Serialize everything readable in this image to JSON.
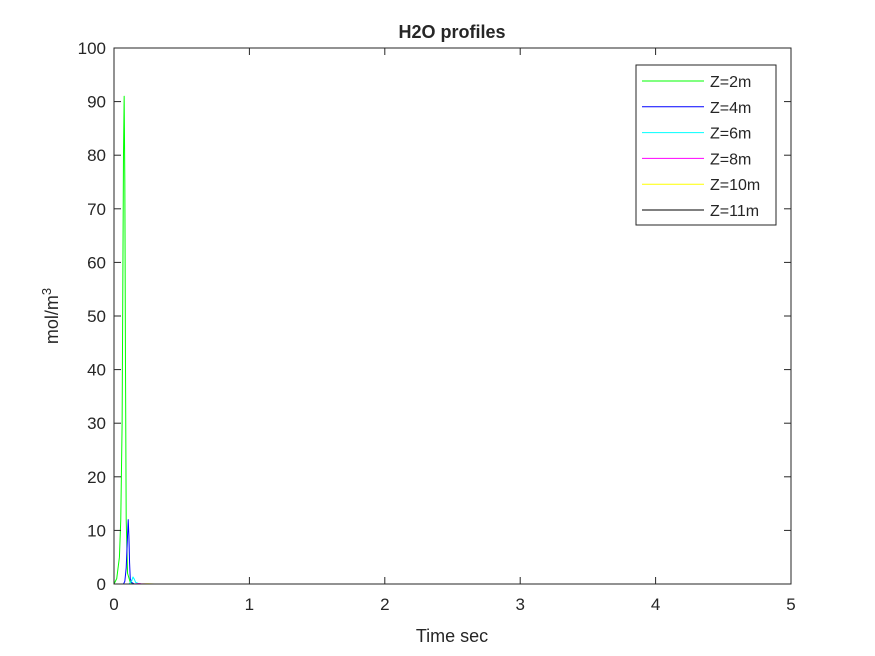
{
  "chart_data": {
    "type": "line",
    "title": "H2O profiles",
    "xlabel": "Time sec",
    "ylabel": "mol/m",
    "ylabel_superscript": "3",
    "xlim": [
      0,
      5
    ],
    "ylim": [
      0,
      100
    ],
    "xticks": [
      0,
      1,
      2,
      3,
      4,
      5
    ],
    "yticks": [
      0,
      10,
      20,
      30,
      40,
      50,
      60,
      70,
      80,
      90,
      100
    ],
    "grid": false,
    "legend_position": "top-right",
    "series": [
      {
        "name": "Z=2m",
        "color": "#00ff00",
        "x": [
          0,
          0.02,
          0.04,
          0.05,
          0.06,
          0.065,
          0.07,
          0.075,
          0.08,
          0.085,
          0.09,
          0.1,
          0.12,
          0.15,
          0.2,
          5
        ],
        "y": [
          0,
          1,
          5,
          12,
          30,
          55,
          80,
          91,
          75,
          40,
          12,
          2,
          0.3,
          0,
          0,
          0
        ]
      },
      {
        "name": "Z=4m",
        "color": "#0000ff",
        "x": [
          0,
          0.07,
          0.08,
          0.09,
          0.1,
          0.105,
          0.11,
          0.115,
          0.12,
          0.13,
          0.15,
          0.2,
          5
        ],
        "y": [
          0,
          0,
          0.5,
          3,
          9,
          12,
          9,
          4,
          1,
          0.3,
          0,
          0,
          0
        ]
      },
      {
        "name": "Z=6m",
        "color": "#00ffff",
        "x": [
          0,
          0.11,
          0.13,
          0.14,
          0.15,
          0.16,
          0.18,
          0.2,
          5
        ],
        "y": [
          0,
          0,
          0.5,
          1.3,
          0.9,
          0.3,
          0.1,
          0,
          0
        ]
      },
      {
        "name": "Z=8m",
        "color": "#ff00ff",
        "x": [
          0,
          0.15,
          0.18,
          0.2,
          0.25,
          5
        ],
        "y": [
          0,
          0,
          0.1,
          0.05,
          0,
          0
        ]
      },
      {
        "name": "Z=10m",
        "color": "#ffff00",
        "x": [
          0,
          0.2,
          0.25,
          0.3,
          5
        ],
        "y": [
          0,
          0,
          0.05,
          0,
          0
        ]
      },
      {
        "name": "Z=11m",
        "color": "#000000",
        "x": [
          0,
          5
        ],
        "y": [
          0,
          0
        ]
      }
    ]
  }
}
